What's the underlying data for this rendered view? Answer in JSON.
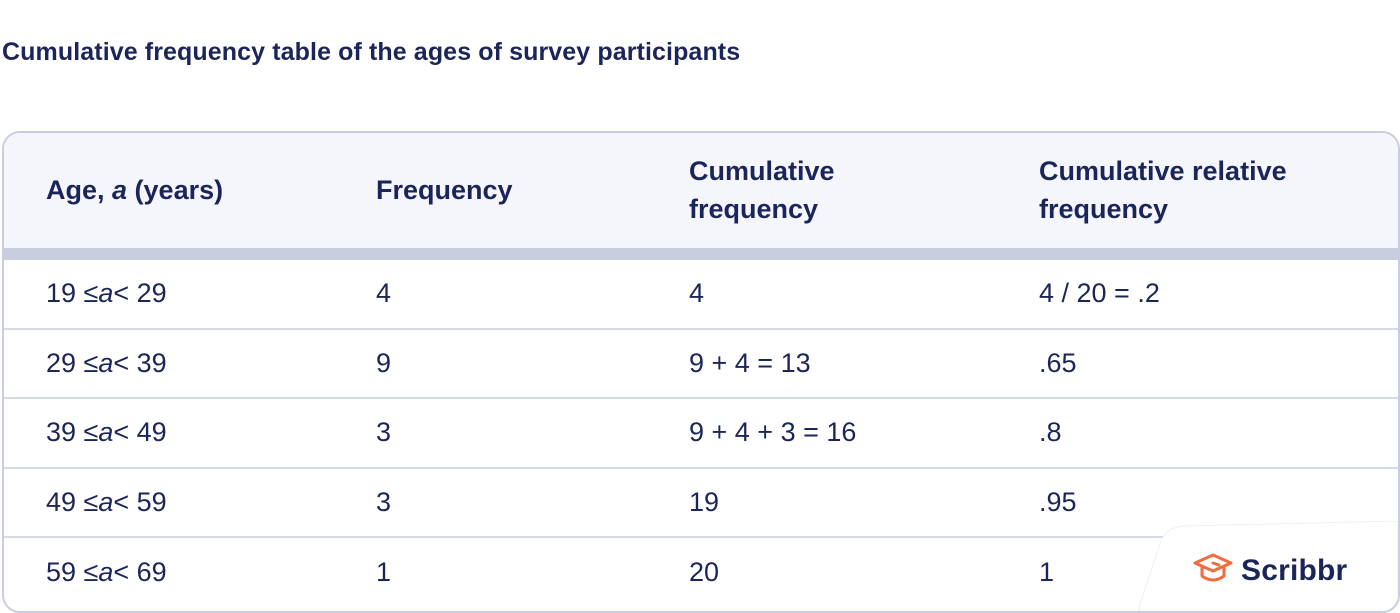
{
  "title": "Cumulative frequency table of the ages of survey participants",
  "table": {
    "headers": {
      "age_prefix": "Age, ",
      "age_var": "a",
      "age_suffix": " (years)",
      "frequency": "Frequency",
      "cum_freq_line1": "Cumulative",
      "cum_freq_line2": "frequency",
      "cum_rel_line1": "Cumulative relative",
      "cum_rel_line2": "frequency"
    },
    "rows": [
      {
        "age_low": "19 ≤ ",
        "age_var": "a",
        "age_high": " < 29",
        "frequency": "4",
        "cumulative": "4",
        "relative": "4 / 20 = .2"
      },
      {
        "age_low": "29 ≤ ",
        "age_var": "a",
        "age_high": " < 39",
        "frequency": "9",
        "cumulative": "9 + 4 = 13",
        "relative": ".65"
      },
      {
        "age_low": "39 ≤ ",
        "age_var": "a",
        "age_high": " < 49",
        "frequency": "3",
        "cumulative": "9 + 4 + 3 = 16",
        "relative": ".8"
      },
      {
        "age_low": "49 ≤ ",
        "age_var": "a",
        "age_high": " < 59",
        "frequency": "3",
        "cumulative": "19",
        "relative": ".95"
      },
      {
        "age_low": "59 ≤ ",
        "age_var": "a",
        "age_high": " < 69",
        "frequency": "1",
        "cumulative": "20",
        "relative": "1"
      }
    ]
  },
  "logo": {
    "text": "Scribbr",
    "icon": "graduation-cap-icon",
    "accent_color": "#f26c3f"
  }
}
